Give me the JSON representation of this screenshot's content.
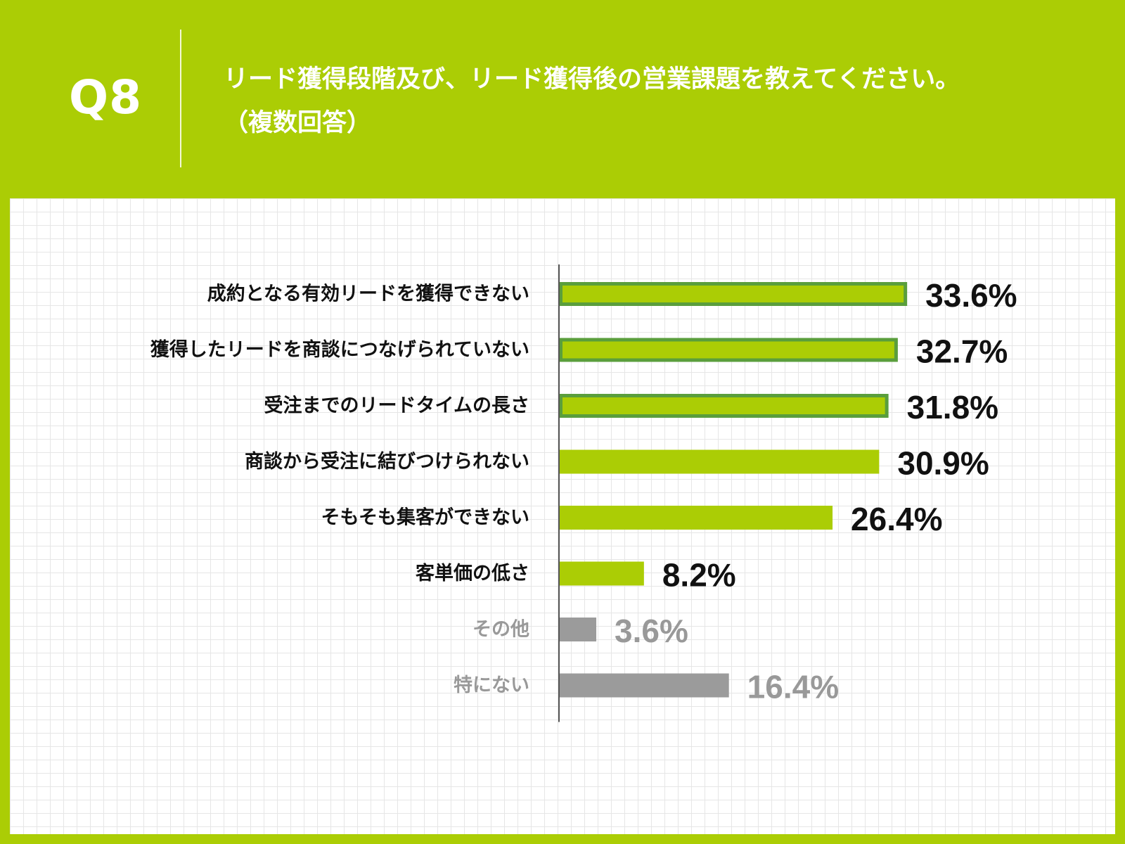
{
  "header": {
    "question_number": "Q8",
    "title_line1": "リード獲得段階及び、リード獲得後の営業課題を教えてください。",
    "title_line2": "（複数回答）"
  },
  "colors": {
    "background": "#abcd05",
    "bar_primary": "#abcd05",
    "bar_highlight_border": "#5a9e3c",
    "bar_muted": "#9b9b9b",
    "label_primary": "#111111",
    "label_muted": "#999999"
  },
  "chart_data": {
    "type": "bar",
    "orientation": "horizontal",
    "categories": [
      "成約となる有効リードを獲得できない",
      "獲得したリードを商談につなげられていない",
      "受注までのリードタイムの長さ",
      "商談から受注に結びつけられない",
      "そもそも集客ができない",
      "客単価の低さ",
      "その他",
      "特にない"
    ],
    "values": [
      33.6,
      32.7,
      31.8,
      30.9,
      26.4,
      8.2,
      3.6,
      16.4
    ],
    "value_labels": [
      "33.6%",
      "32.7%",
      "31.8%",
      "30.9%",
      "26.4%",
      "8.2%",
      "3.6%",
      "16.4%"
    ],
    "styles": [
      "highlight",
      "highlight",
      "highlight",
      "primary",
      "primary",
      "primary",
      "muted",
      "muted"
    ],
    "unit": "%",
    "xlim": [
      0,
      34.2
    ],
    "grid": true,
    "legend": "none"
  }
}
